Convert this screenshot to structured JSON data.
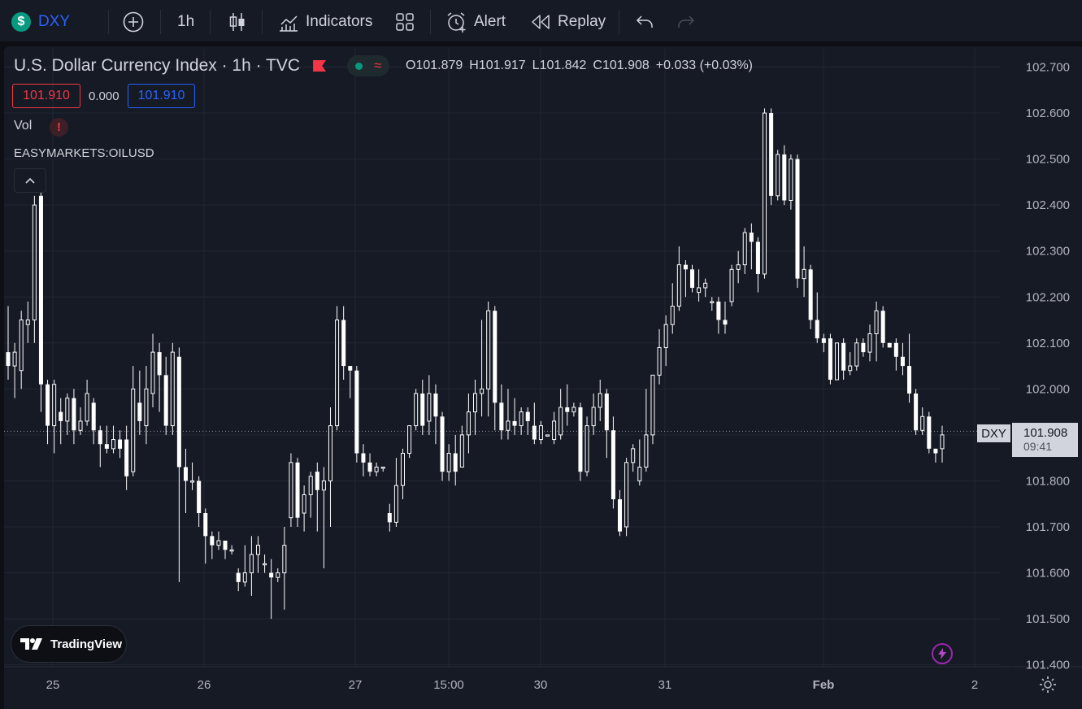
{
  "toolbar": {
    "symbol": "DXY",
    "interval": "1h",
    "indicators_label": "Indicators",
    "alert_label": "Alert",
    "replay_label": "Replay"
  },
  "legend": {
    "title": "U.S. Dollar Currency Index · 1h · TVC",
    "open": "O101.879",
    "high": "H101.917",
    "low": "L101.842",
    "close": "C101.908",
    "change": "+0.033 (+0.03%)",
    "bid": "101.910",
    "spread": "0.000",
    "ask": "101.910",
    "vol_label": "Vol",
    "vol_warning": "!",
    "compare_label": "EASYMARKETS:OILUSD"
  },
  "price_tag": {
    "symbol": "DXY",
    "price": "101.908",
    "countdown": "09:41"
  },
  "brand": "TradingView",
  "colors": {
    "background": "#161a25",
    "candle": "#ffffff",
    "grid": "#232733",
    "bid": "#f23645",
    "ask": "#2962ff"
  },
  "chart_data": {
    "type": "candlestick",
    "title": "U.S. Dollar Currency Index · 1h · TVC",
    "y_ticks": [
      101.4,
      101.5,
      101.6,
      101.7,
      101.8,
      101.9,
      102.0,
      102.1,
      102.2,
      102.3,
      102.4,
      102.5,
      102.6,
      102.7
    ],
    "ylim": [
      101.39,
      102.72
    ],
    "x_ticks": [
      "25",
      "26",
      "27",
      "15:00",
      "30",
      "31",
      "Feb",
      "2"
    ],
    "last_price": 101.908,
    "candles": [
      [
        102.08,
        102.05,
        102.18,
        102.02
      ],
      [
        102.05,
        102.08,
        102.1,
        101.98
      ],
      [
        102.04,
        102.15,
        102.17,
        102.0
      ],
      [
        102.14,
        102.15,
        102.19,
        102.1
      ],
      [
        102.15,
        102.4,
        102.42,
        102.1
      ],
      [
        102.42,
        102.01,
        102.43,
        101.95
      ],
      [
        102.01,
        101.92,
        102.02,
        101.88
      ],
      [
        101.92,
        102.01,
        102.02,
        101.86
      ],
      [
        101.95,
        101.93,
        101.98,
        101.88
      ],
      [
        101.93,
        101.98,
        101.99,
        101.9
      ],
      [
        101.98,
        101.91,
        102.0,
        101.88
      ],
      [
        101.91,
        101.93,
        101.96,
        101.9
      ],
      [
        101.93,
        101.99,
        102.02,
        101.92
      ],
      [
        101.97,
        101.91,
        101.98,
        101.88
      ],
      [
        101.91,
        101.88,
        101.92,
        101.83
      ],
      [
        101.88,
        101.87,
        101.92,
        101.86
      ],
      [
        101.87,
        101.89,
        101.92,
        101.86
      ],
      [
        101.89,
        101.87,
        101.91,
        101.85
      ],
      [
        101.89,
        101.81,
        101.92,
        101.78
      ],
      [
        101.82,
        102.0,
        102.05,
        101.81
      ],
      [
        101.97,
        101.93,
        102.04,
        101.9
      ],
      [
        101.92,
        102.0,
        102.05,
        101.88
      ],
      [
        101.99,
        102.08,
        102.12,
        101.96
      ],
      [
        102.08,
        102.03,
        102.1,
        101.95
      ],
      [
        102.03,
        101.92,
        102.07,
        101.9
      ],
      [
        101.92,
        102.08,
        102.1,
        101.9
      ],
      [
        102.07,
        101.83,
        102.09,
        101.58
      ],
      [
        101.83,
        101.8,
        101.87,
        101.73
      ],
      [
        101.8,
        101.8,
        101.84,
        101.78
      ],
      [
        101.8,
        101.73,
        101.81,
        101.7
      ],
      [
        101.73,
        101.68,
        101.74,
        101.62
      ],
      [
        101.68,
        101.66,
        101.69,
        101.63
      ],
      [
        101.66,
        101.67,
        101.69,
        101.65
      ],
      [
        101.67,
        101.65,
        101.67,
        101.63
      ],
      [
        101.65,
        101.65,
        101.66,
        101.64
      ],
      [
        101.6,
        101.58,
        101.61,
        101.56
      ],
      [
        101.58,
        101.6,
        101.66,
        101.57
      ],
      [
        101.6,
        101.64,
        101.68,
        101.55
      ],
      [
        101.64,
        101.66,
        101.68,
        101.6
      ],
      [
        101.62,
        101.62,
        101.64,
        101.6
      ],
      [
        101.6,
        101.59,
        101.63,
        101.5
      ],
      [
        101.59,
        101.6,
        101.61,
        101.58
      ],
      [
        101.6,
        101.66,
        101.7,
        101.52
      ],
      [
        101.72,
        101.84,
        101.86,
        101.7
      ],
      [
        101.84,
        101.72,
        101.85,
        101.7
      ],
      [
        101.73,
        101.77,
        101.79,
        101.69
      ],
      [
        101.77,
        101.81,
        101.82,
        101.72
      ],
      [
        101.82,
        101.78,
        101.84,
        101.69
      ],
      [
        101.78,
        101.8,
        101.83,
        101.61
      ],
      [
        101.8,
        101.92,
        101.96,
        101.7
      ],
      [
        101.92,
        102.15,
        102.18,
        101.91
      ],
      [
        102.15,
        102.05,
        102.18,
        102.02
      ],
      [
        102.05,
        102.04,
        102.05,
        101.98
      ],
      [
        102.04,
        101.86,
        102.05,
        101.84
      ],
      [
        101.86,
        101.84,
        101.88,
        101.81
      ],
      [
        101.84,
        101.82,
        101.86,
        101.81
      ],
      [
        101.82,
        101.83,
        101.84,
        101.81
      ],
      [
        101.83,
        101.83,
        101.83,
        101.82
      ],
      [
        101.73,
        101.71,
        101.75,
        101.69
      ],
      [
        101.71,
        101.79,
        101.85,
        101.7
      ],
      [
        101.79,
        101.86,
        101.87,
        101.76
      ],
      [
        101.86,
        101.92,
        101.92,
        101.85
      ],
      [
        101.92,
        101.99,
        102.0,
        101.91
      ],
      [
        101.99,
        101.92,
        102.02,
        101.9
      ],
      [
        101.93,
        101.99,
        102.03,
        101.9
      ],
      [
        101.99,
        101.94,
        102.01,
        101.88
      ],
      [
        101.94,
        101.82,
        101.95,
        101.8
      ],
      [
        101.82,
        101.86,
        101.88,
        101.8
      ],
      [
        101.86,
        101.82,
        101.9,
        101.79
      ],
      [
        101.83,
        101.9,
        101.92,
        101.86
      ],
      [
        101.9,
        101.95,
        101.99,
        101.86
      ],
      [
        101.95,
        101.99,
        102.02,
        101.9
      ],
      [
        101.99,
        102.0,
        102.15,
        101.94
      ],
      [
        102.0,
        102.17,
        102.19,
        101.94
      ],
      [
        102.17,
        101.97,
        102.18,
        101.91
      ],
      [
        101.97,
        101.91,
        102.01,
        101.89
      ],
      [
        101.91,
        101.93,
        102.0,
        101.89
      ],
      [
        101.93,
        101.92,
        101.98,
        101.9
      ],
      [
        101.92,
        101.95,
        101.96,
        101.9
      ],
      [
        101.95,
        101.93,
        101.96,
        101.9
      ],
      [
        101.92,
        101.89,
        101.97,
        101.88
      ],
      [
        101.89,
        101.92,
        101.93,
        101.88
      ],
      [
        101.9,
        101.9,
        101.9,
        101.9
      ],
      [
        101.89,
        101.93,
        101.95,
        101.88
      ],
      [
        101.9,
        101.96,
        102.0,
        101.89
      ],
      [
        101.96,
        101.95,
        102.01,
        101.92
      ],
      [
        101.95,
        101.96,
        101.97,
        101.94
      ],
      [
        101.96,
        101.82,
        101.97,
        101.8
      ],
      [
        101.82,
        101.92,
        101.94,
        101.81
      ],
      [
        101.92,
        101.96,
        101.99,
        101.9
      ],
      [
        101.96,
        101.99,
        102.02,
        101.93
      ],
      [
        101.99,
        101.91,
        102.0,
        101.85
      ],
      [
        101.91,
        101.76,
        101.94,
        101.74
      ],
      [
        101.76,
        101.69,
        101.78,
        101.68
      ],
      [
        101.7,
        101.84,
        101.85,
        101.68
      ],
      [
        101.84,
        101.87,
        101.88,
        101.82
      ],
      [
        101.8,
        101.83,
        101.89,
        101.79
      ],
      [
        101.83,
        101.9,
        102.0,
        101.82
      ],
      [
        101.9,
        102.03,
        102.03,
        101.88
      ],
      [
        102.03,
        102.09,
        102.13,
        102.01
      ],
      [
        102.09,
        102.14,
        102.16,
        102.05
      ],
      [
        102.14,
        102.18,
        102.23,
        102.12
      ],
      [
        102.18,
        102.27,
        102.31,
        102.17
      ],
      [
        102.27,
        102.26,
        102.28,
        102.2
      ],
      [
        102.26,
        102.22,
        102.27,
        102.21
      ],
      [
        102.21,
        102.22,
        102.26,
        102.19
      ],
      [
        102.22,
        102.23,
        102.24,
        102.2
      ],
      [
        102.19,
        102.19,
        102.2,
        102.17
      ],
      [
        102.19,
        102.15,
        102.2,
        102.12
      ],
      [
        102.15,
        102.14,
        102.19,
        102.12
      ],
      [
        102.19,
        102.26,
        102.27,
        102.18
      ],
      [
        102.26,
        102.27,
        102.3,
        102.23
      ],
      [
        102.27,
        102.34,
        102.35,
        102.25
      ],
      [
        102.34,
        102.32,
        102.36,
        102.26
      ],
      [
        102.32,
        102.25,
        102.33,
        102.21
      ],
      [
        102.25,
        102.6,
        102.61,
        102.24
      ],
      [
        102.6,
        102.42,
        102.61,
        102.4
      ],
      [
        102.42,
        102.51,
        102.52,
        102.41
      ],
      [
        102.51,
        102.41,
        102.53,
        102.4
      ],
      [
        102.41,
        102.5,
        102.51,
        102.39
      ],
      [
        102.5,
        102.24,
        102.51,
        102.22
      ],
      [
        102.24,
        102.26,
        102.31,
        102.2
      ],
      [
        102.26,
        102.15,
        102.27,
        102.13
      ],
      [
        102.15,
        102.11,
        102.21,
        102.1
      ],
      [
        102.11,
        102.1,
        102.12,
        102.08
      ],
      [
        102.11,
        102.02,
        102.12,
        102.01
      ],
      [
        102.02,
        102.1,
        102.1,
        102.03
      ],
      [
        102.1,
        102.04,
        102.11,
        102.02
      ],
      [
        102.04,
        102.05,
        102.08,
        102.03
      ],
      [
        102.05,
        102.1,
        102.11,
        102.04
      ],
      [
        102.1,
        102.08,
        102.11,
        102.07
      ],
      [
        102.08,
        102.12,
        102.14,
        102.06
      ],
      [
        102.12,
        102.17,
        102.19,
        102.06
      ],
      [
        102.17,
        102.1,
        102.18,
        102.09
      ],
      [
        102.1,
        102.09,
        102.1,
        102.09
      ],
      [
        102.1,
        102.07,
        102.11,
        102.04
      ],
      [
        102.07,
        102.05,
        102.1,
        102.03
      ],
      [
        102.05,
        101.99,
        102.12,
        101.97
      ],
      [
        101.99,
        101.91,
        102.0,
        101.9
      ],
      [
        101.91,
        101.94,
        101.96,
        101.9
      ],
      [
        101.94,
        101.87,
        101.95,
        101.86
      ],
      [
        101.87,
        101.86,
        101.87,
        101.84
      ],
      [
        101.87,
        101.9,
        101.92,
        101.84
      ]
    ]
  }
}
